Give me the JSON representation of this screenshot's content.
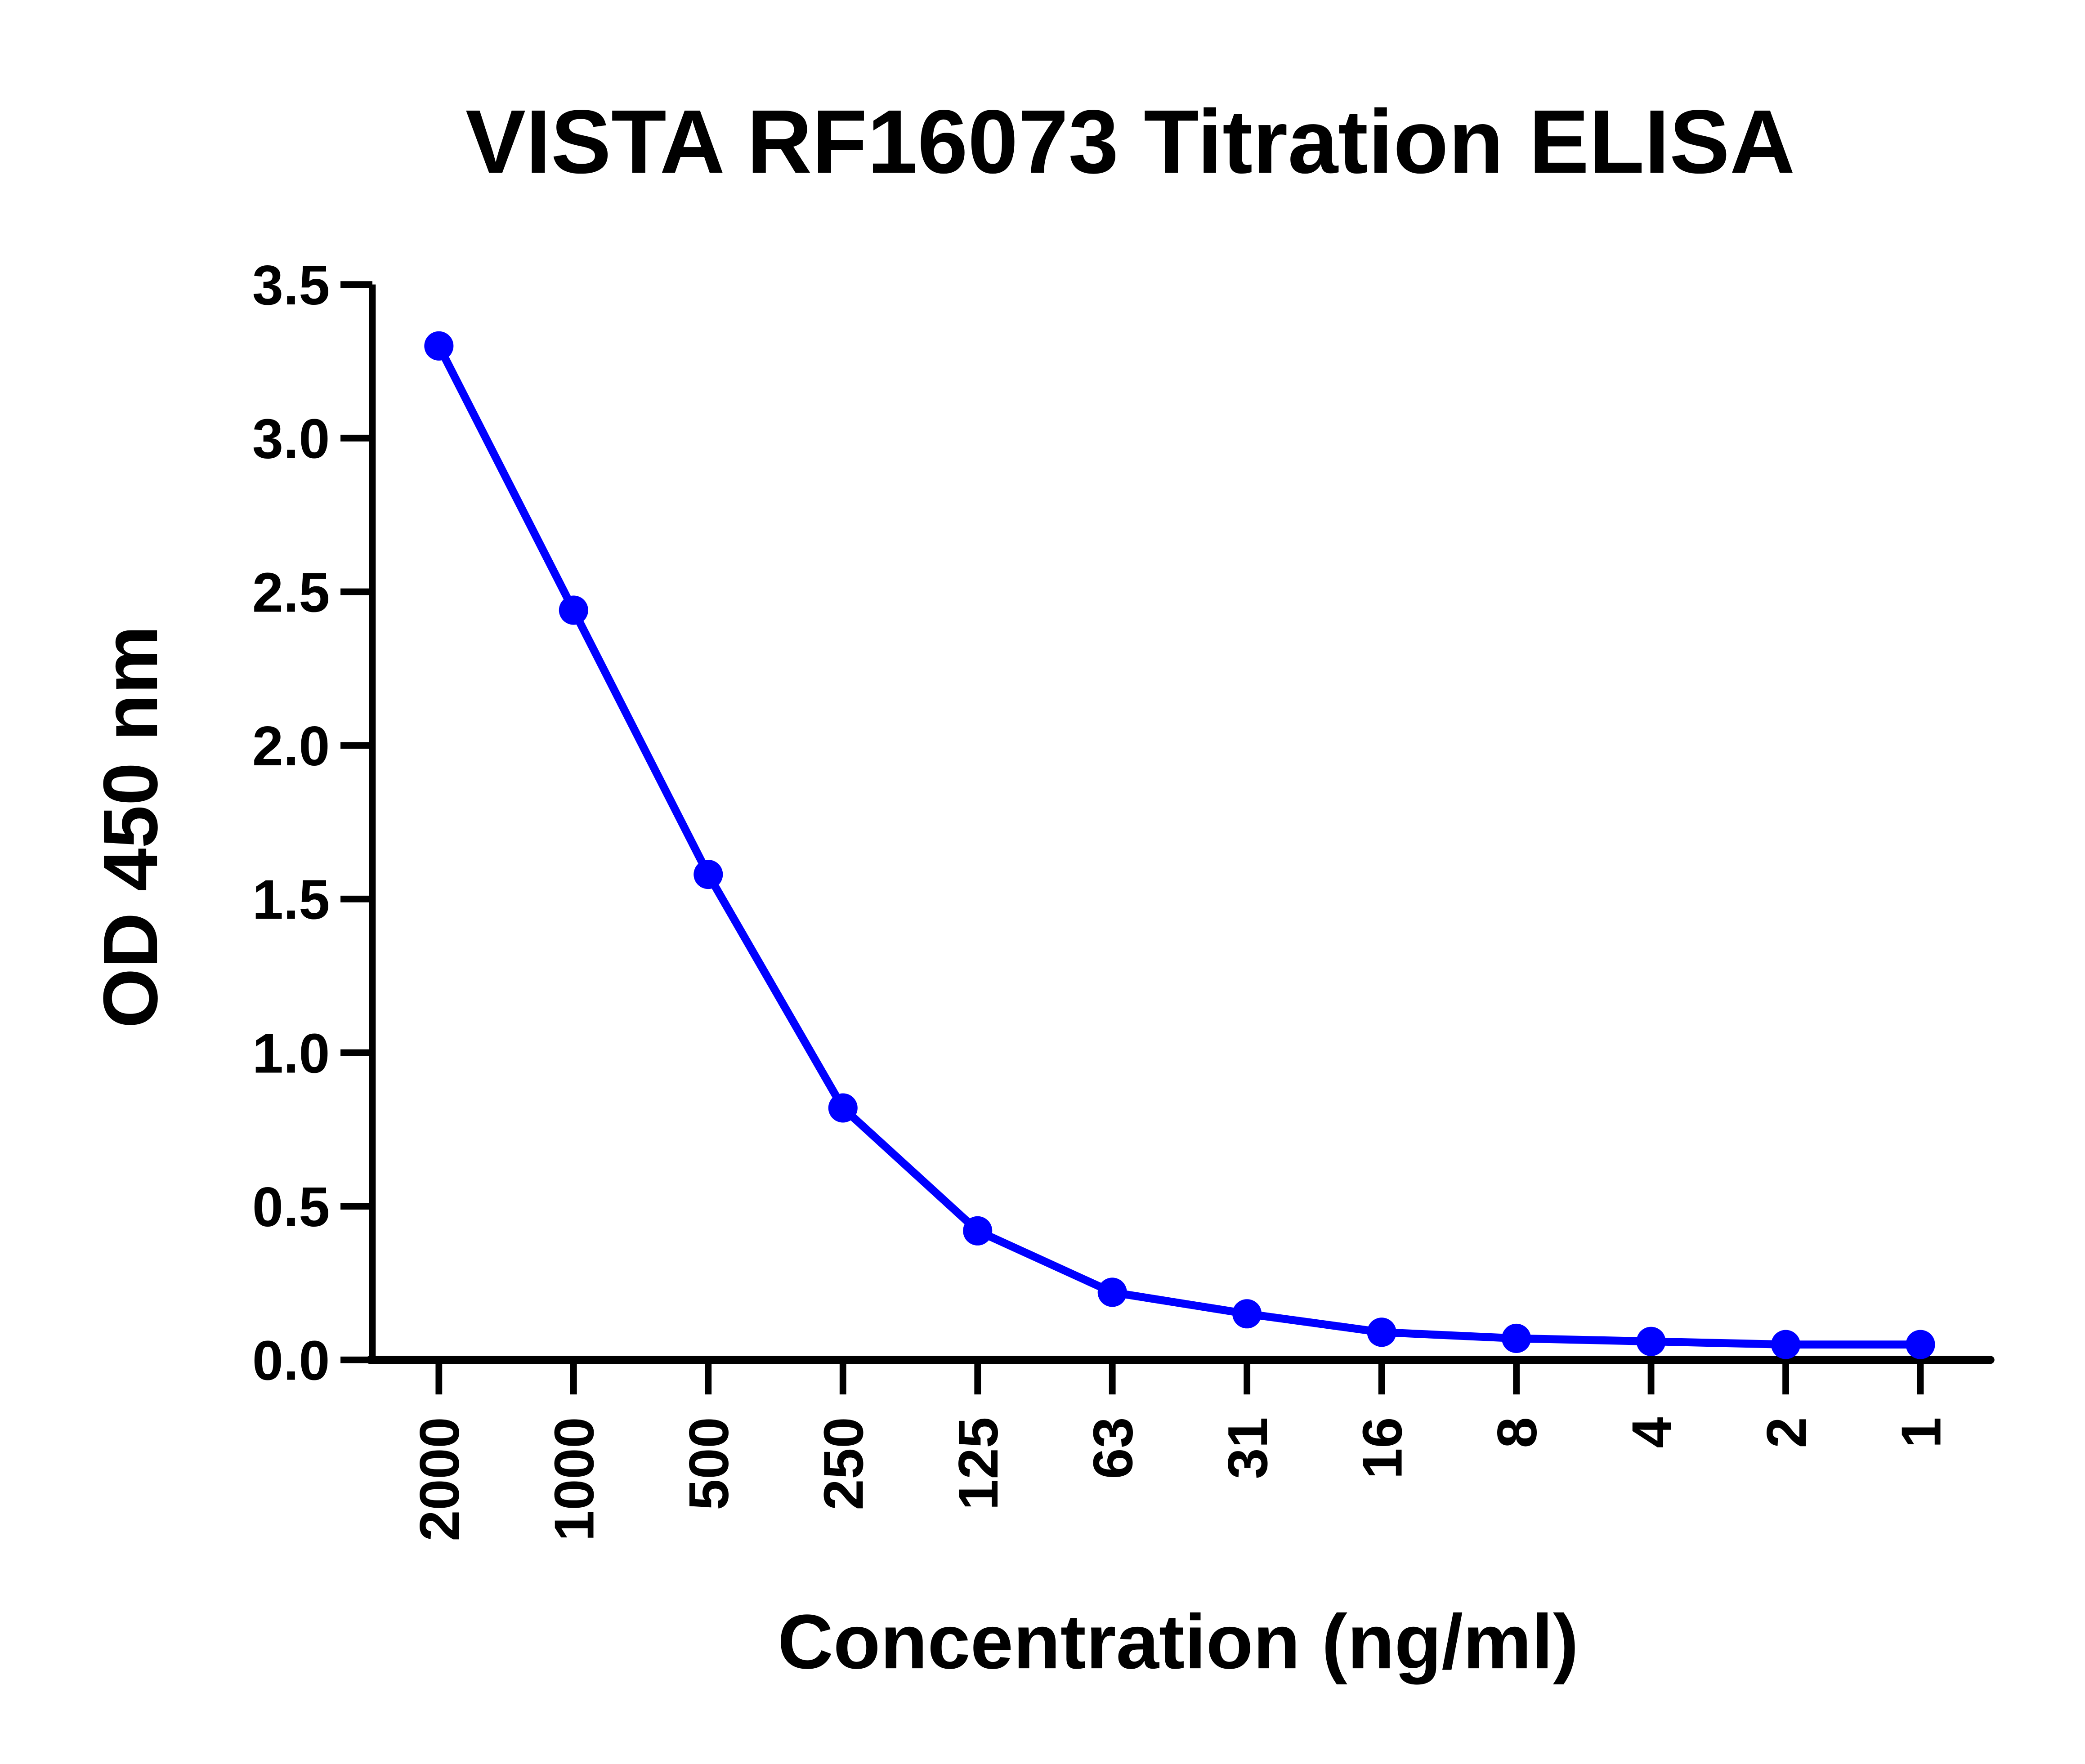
{
  "chart_data": {
    "type": "line",
    "title": "VISTA RF16073 Titration ELISA",
    "xlabel": "Concentration (ng/ml)",
    "ylabel": "OD 450 nm",
    "categories": [
      "2000",
      "1000",
      "500",
      "250",
      "125",
      "63",
      "31",
      "16",
      "8",
      "4",
      "2",
      "1"
    ],
    "series": [
      {
        "name": "VISTA RF16073",
        "values": [
          3.3,
          2.44,
          1.58,
          0.82,
          0.42,
          0.22,
          0.15,
          0.09,
          0.07,
          0.06,
          0.05,
          0.05
        ],
        "color": "#0000ff"
      }
    ],
    "ylim": [
      0,
      3.5
    ],
    "yticks": [
      "0.0",
      "0.5",
      "1.0",
      "1.5",
      "2.0",
      "2.5",
      "3.0",
      "3.5"
    ],
    "grid": false,
    "legend": "none"
  }
}
